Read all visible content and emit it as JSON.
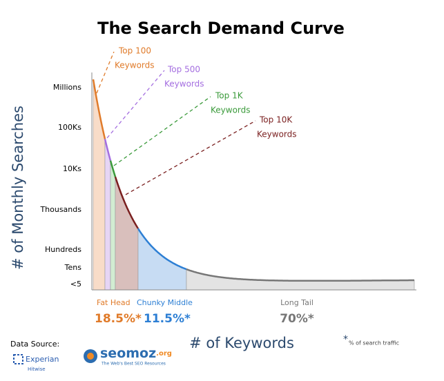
{
  "title": "The Search Demand Curve",
  "y_axis": {
    "title": "# of Monthly Searches",
    "labels": [
      "Millions",
      "100Ks",
      "10Ks",
      "Thousands",
      "Hundreds",
      "Tens",
      "<5"
    ]
  },
  "x_axis": {
    "title": "# of Keywords"
  },
  "callouts": [
    {
      "line1": "Top 100",
      "line2": "Keywords"
    },
    {
      "line1": "Top 500",
      "line2": "Keywords"
    },
    {
      "line1": "Top 1K",
      "line2": "Keywords"
    },
    {
      "line1": "Top 10K",
      "line2": "Keywords"
    }
  ],
  "segments": [
    {
      "name": "Fat Head",
      "share": "18.5%*"
    },
    {
      "name": "Chunky Middle",
      "share": "11.5%*"
    },
    {
      "name": "Long Tail",
      "share": "70%*"
    }
  ],
  "footnote": {
    "mark": "*",
    "text": "% of search traffic"
  },
  "source": {
    "label": "Data Source:",
    "brand": "Experian",
    "sub": "Hitwise",
    "logo": "seomoz",
    "logo_suffix": ".org",
    "logo_tagline": "The Web's Best SEO Resources"
  }
}
